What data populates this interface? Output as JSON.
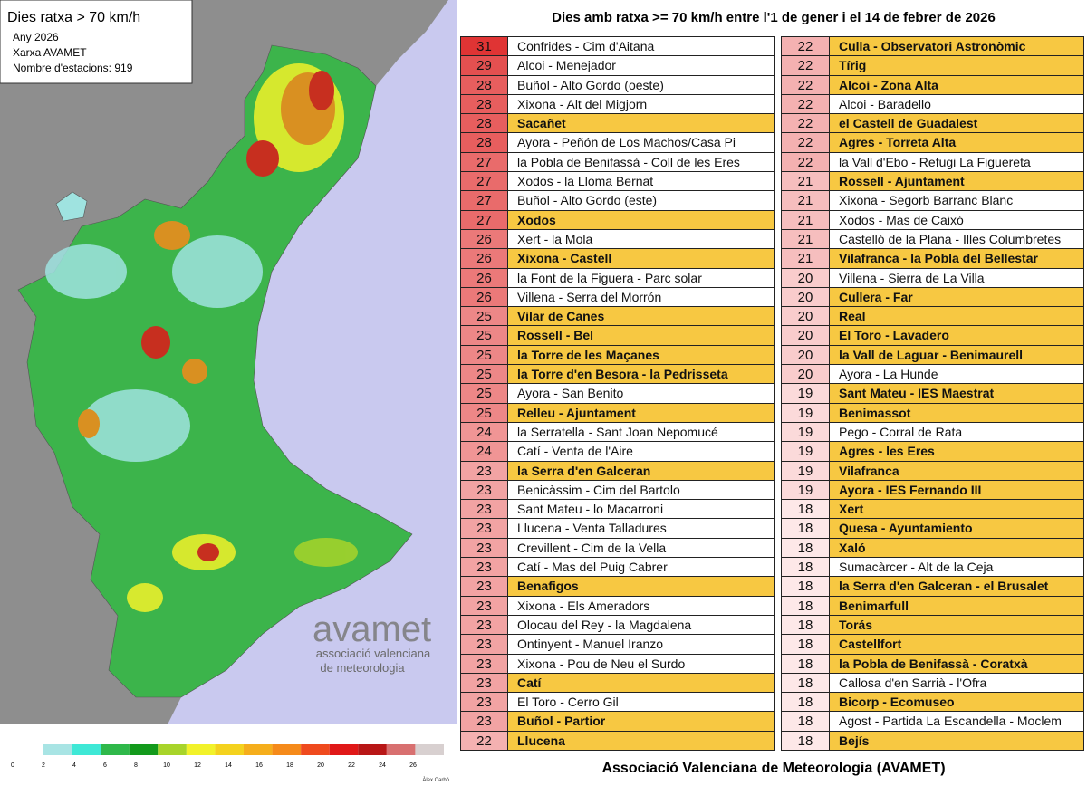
{
  "map": {
    "title": "Dies ratxa > 70 km/h",
    "lines": [
      "Any 2026",
      "Xarxa AVAMET",
      "Nombre d'estacions: 919"
    ],
    "logo": {
      "name": "avamet",
      "lines": [
        "associació valenciana",
        "de meteorologia"
      ]
    },
    "legend": {
      "ticks": [
        0,
        2,
        4,
        6,
        8,
        10,
        12,
        14,
        16,
        18,
        20,
        22,
        24,
        26
      ],
      "colors": [
        "#a8e4e4",
        "#3ee8d6",
        "#2fb84a",
        "#139a1c",
        "#a8d42a",
        "#f2f22a",
        "#f4d21e",
        "#f5ae1c",
        "#f58a1a",
        "#ef4a1e",
        "#e01818",
        "#b81616",
        "#d87070",
        "#d8d0d0"
      ]
    },
    "credit": "Àlex Carbó"
  },
  "table": {
    "title": "Dies amb ratxa >= 70 km/h entre l'1 de gener i el 14 de febrer de 2026",
    "columns": [
      [
        {
          "value": 31,
          "name": "Confrides - Cim d'Aitana",
          "highlight": false
        },
        {
          "value": 29,
          "name": "Alcoi - Menejador",
          "highlight": false
        },
        {
          "value": 28,
          "name": "Buñol - Alto Gordo (oeste)",
          "highlight": false
        },
        {
          "value": 28,
          "name": "Xixona - Alt del Migjorn",
          "highlight": false
        },
        {
          "value": 28,
          "name": "Sacañet",
          "highlight": true
        },
        {
          "value": 28,
          "name": "Ayora - Peñón de Los Machos/Casa Pi",
          "highlight": false
        },
        {
          "value": 27,
          "name": "la Pobla de Benifassà - Coll de les Eres",
          "highlight": false
        },
        {
          "value": 27,
          "name": "Xodos - la Lloma Bernat",
          "highlight": false
        },
        {
          "value": 27,
          "name": "Buñol - Alto Gordo (este)",
          "highlight": false
        },
        {
          "value": 27,
          "name": "Xodos",
          "highlight": true
        },
        {
          "value": 26,
          "name": "Xert - la Mola",
          "highlight": false
        },
        {
          "value": 26,
          "name": "Xixona - Castell",
          "highlight": true
        },
        {
          "value": 26,
          "name": "la Font de la Figuera - Parc solar",
          "highlight": false
        },
        {
          "value": 26,
          "name": "Villena - Serra del Morrón",
          "highlight": false
        },
        {
          "value": 25,
          "name": "Vilar de Canes",
          "highlight": true
        },
        {
          "value": 25,
          "name": "Rossell - Bel",
          "highlight": true
        },
        {
          "value": 25,
          "name": "la Torre de les Maçanes",
          "highlight": true
        },
        {
          "value": 25,
          "name": "la Torre d'en Besora - la Pedrisseta",
          "highlight": true
        },
        {
          "value": 25,
          "name": "Ayora - San Benito",
          "highlight": false
        },
        {
          "value": 25,
          "name": "Relleu - Ajuntament",
          "highlight": true
        },
        {
          "value": 24,
          "name": "la Serratella - Sant Joan Nepomucé",
          "highlight": false
        },
        {
          "value": 24,
          "name": "Catí - Venta de l'Aire",
          "highlight": false
        },
        {
          "value": 23,
          "name": "la Serra d'en Galceran",
          "highlight": true
        },
        {
          "value": 23,
          "name": "Benicàssim - Cim del Bartolo",
          "highlight": false
        },
        {
          "value": 23,
          "name": "Sant Mateu - lo Macarroni",
          "highlight": false
        },
        {
          "value": 23,
          "name": "Llucena - Venta Talladures",
          "highlight": false
        },
        {
          "value": 23,
          "name": "Crevillent - Cim de la Vella",
          "highlight": false
        },
        {
          "value": 23,
          "name": "Catí - Mas del Puig Cabrer",
          "highlight": false
        },
        {
          "value": 23,
          "name": "Benafigos",
          "highlight": true
        },
        {
          "value": 23,
          "name": "Xixona - Els Ameradors",
          "highlight": false
        },
        {
          "value": 23,
          "name": "Olocau del Rey - la Magdalena",
          "highlight": false
        },
        {
          "value": 23,
          "name": "Ontinyent - Manuel Iranzo",
          "highlight": false
        },
        {
          "value": 23,
          "name": "Xixona - Pou de Neu el Surdo",
          "highlight": false
        },
        {
          "value": 23,
          "name": "Catí",
          "highlight": true
        },
        {
          "value": 23,
          "name": "El Toro - Cerro Gil",
          "highlight": false
        },
        {
          "value": 23,
          "name": "Buñol - Partior",
          "highlight": true
        },
        {
          "value": 22,
          "name": "Llucena",
          "highlight": true
        }
      ],
      [
        {
          "value": 22,
          "name": "Culla - Observatori Astronòmic",
          "highlight": true
        },
        {
          "value": 22,
          "name": "Tírig",
          "highlight": true
        },
        {
          "value": 22,
          "name": "Alcoi - Zona Alta",
          "highlight": true
        },
        {
          "value": 22,
          "name": "Alcoi - Baradello",
          "highlight": false
        },
        {
          "value": 22,
          "name": "el Castell de Guadalest",
          "highlight": true
        },
        {
          "value": 22,
          "name": "Agres - Torreta Alta",
          "highlight": true
        },
        {
          "value": 22,
          "name": "la Vall d'Ebo - Refugi La Figuereta",
          "highlight": false
        },
        {
          "value": 21,
          "name": "Rossell - Ajuntament",
          "highlight": true
        },
        {
          "value": 21,
          "name": "Xixona - Segorb Barranc Blanc",
          "highlight": false
        },
        {
          "value": 21,
          "name": "Xodos - Mas de Caixó",
          "highlight": false
        },
        {
          "value": 21,
          "name": "Castelló de la Plana - Illes Columbretes",
          "highlight": false
        },
        {
          "value": 21,
          "name": "Vilafranca - la Pobla del Bellestar",
          "highlight": true
        },
        {
          "value": 20,
          "name": "Villena - Sierra de La Villa",
          "highlight": false
        },
        {
          "value": 20,
          "name": "Cullera - Far",
          "highlight": true
        },
        {
          "value": 20,
          "name": "Real",
          "highlight": true
        },
        {
          "value": 20,
          "name": "El Toro - Lavadero",
          "highlight": true
        },
        {
          "value": 20,
          "name": "la Vall de Laguar - Benimaurell",
          "highlight": true
        },
        {
          "value": 20,
          "name": "Ayora - La Hunde",
          "highlight": false
        },
        {
          "value": 19,
          "name": "Sant Mateu - IES Maestrat",
          "highlight": true
        },
        {
          "value": 19,
          "name": "Benimassot",
          "highlight": true
        },
        {
          "value": 19,
          "name": "Pego - Corral de Rata",
          "highlight": false
        },
        {
          "value": 19,
          "name": "Agres - les Eres",
          "highlight": true
        },
        {
          "value": 19,
          "name": "Vilafranca",
          "highlight": true
        },
        {
          "value": 19,
          "name": "Ayora - IES Fernando III",
          "highlight": true
        },
        {
          "value": 18,
          "name": "Xert",
          "highlight": true
        },
        {
          "value": 18,
          "name": "Quesa - Ayuntamiento",
          "highlight": true
        },
        {
          "value": 18,
          "name": "Xaló",
          "highlight": true
        },
        {
          "value": 18,
          "name": "Sumacàrcer - Alt de la Ceja",
          "highlight": false
        },
        {
          "value": 18,
          "name": "la Serra d'en Galceran - el Brusalet",
          "highlight": true
        },
        {
          "value": 18,
          "name": "Benimarfull",
          "highlight": true
        },
        {
          "value": 18,
          "name": "Torás",
          "highlight": true
        },
        {
          "value": 18,
          "name": "Castellfort",
          "highlight": true
        },
        {
          "value": 18,
          "name": "la Pobla de Benifassà - Coratxà",
          "highlight": true
        },
        {
          "value": 18,
          "name": "Callosa d'en Sarrià - l'Ofra",
          "highlight": false
        },
        {
          "value": 18,
          "name": "Bicorp - Ecomuseo",
          "highlight": true
        },
        {
          "value": 18,
          "name": "Agost - Partida La Escandella - Moclem",
          "highlight": false
        },
        {
          "value": 18,
          "name": "Bejís",
          "highlight": true
        }
      ]
    ],
    "footer": "Associació Valenciana de Meteorologia (AVAMET)"
  }
}
